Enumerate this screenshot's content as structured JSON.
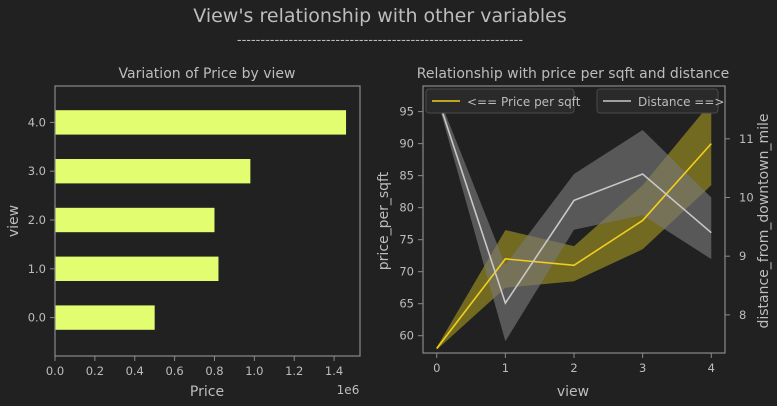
{
  "figure": {
    "suptitle": "View's relationship with other variables",
    "subline": "-------------------------------------------------------------"
  },
  "colors": {
    "background": "#212121",
    "text": "#bdbdbd",
    "axis_frame": "#8a8a8a",
    "bar": "#e2fd6f",
    "price_line": "#f2ce1d",
    "price_band": "#8d8320",
    "distance_line": "#c8c8c8",
    "distance_band": "#777777"
  },
  "chart_data": [
    {
      "type": "bar",
      "orientation": "horizontal",
      "title": "Variation of Price by view",
      "xlabel": "Price",
      "ylabel": "view",
      "x_offset_label": "1e6",
      "xlim": [
        0,
        1.53
      ],
      "x_ticks": [
        "0.0",
        "0.2",
        "0.4",
        "0.6",
        "0.8",
        "1.0",
        "1.2",
        "1.4"
      ],
      "categories": [
        "0.0",
        "1.0",
        "2.0",
        "3.0",
        "4.0"
      ],
      "values": [
        0.5,
        0.82,
        0.8,
        0.98,
        1.46
      ],
      "value_scale": 1000000,
      "grid": false
    },
    {
      "type": "line",
      "title": "Relationship with price per sqft and distance",
      "xlabel": "view",
      "ylabel_left": "price_per_sqft",
      "ylabel_right": "distance_from_downtown_mile",
      "x": [
        0,
        1,
        2,
        3,
        4
      ],
      "xlim": [
        -0.2,
        4.2
      ],
      "x_ticks": [
        "0",
        "1",
        "2",
        "3",
        "4"
      ],
      "y_left_lim": [
        57.3,
        99.0
      ],
      "y_left_ticks": [
        "60",
        "65",
        "70",
        "75",
        "80",
        "85",
        "90",
        "95"
      ],
      "y_right_lim": [
        7.35,
        11.9
      ],
      "y_right_ticks": [
        "8",
        "9",
        "10",
        "11"
      ],
      "legend": [
        "<== Price per sqft",
        "Distance ==>"
      ],
      "series": [
        {
          "name": "<== Price per sqft",
          "axis": "left",
          "values": [
            58,
            72,
            71,
            78,
            90
          ],
          "ci_low": [
            57.8,
            67.5,
            68.5,
            73.5,
            83.5
          ],
          "ci_high": [
            58.2,
            76.5,
            74,
            83.5,
            96.5
          ]
        },
        {
          "name": "Distance ==>",
          "axis": "right",
          "values": [
            11.75,
            8.2,
            9.95,
            10.4,
            9.4
          ],
          "ci_low": [
            11.7,
            7.55,
            9.45,
            9.7,
            8.95
          ],
          "ci_high": [
            11.8,
            8.85,
            10.4,
            11.15,
            10.0
          ]
        }
      ],
      "legend_placement": "top",
      "grid": false
    }
  ]
}
